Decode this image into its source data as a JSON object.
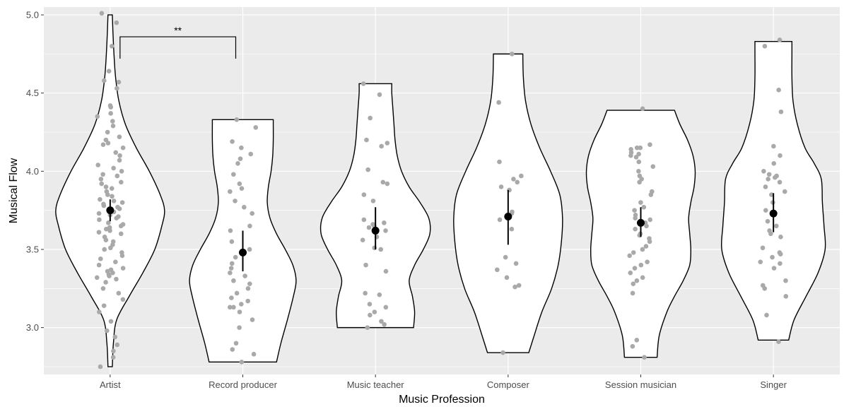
{
  "chart_data": {
    "type": "violin",
    "xlabel": "Music Profession",
    "ylabel": "Musical Flow",
    "ylim": [
      2.7,
      5.05
    ],
    "yticks": [
      3.0,
      3.5,
      4.0,
      4.5,
      5.0
    ],
    "ytick_labels": [
      "3.0",
      "3.5",
      "4.0",
      "4.5",
      "5.0"
    ],
    "categories": [
      "Artist",
      "Record producer",
      "Music teacher",
      "Composer",
      "Session musician",
      "Singer"
    ],
    "grid": true,
    "significance": [
      {
        "from": "Artist",
        "to": "Record producer",
        "label": "**"
      }
    ],
    "colors": {
      "panel": "#ebebeb",
      "grid": "#ffffff",
      "violin_fill": "#ffffff",
      "violin_line": "#000000",
      "point": "#a9a9a9",
      "summary": "#000000"
    },
    "groups": [
      {
        "name": "Artist",
        "mean": 3.75,
        "ci": [
          3.68,
          3.82
        ],
        "range": [
          2.75,
          5.0
        ],
        "density": [
          [
            2.75,
            0.04
          ],
          [
            2.9,
            0.06
          ],
          [
            3.05,
            0.12
          ],
          [
            3.2,
            0.35
          ],
          [
            3.35,
            0.6
          ],
          [
            3.5,
            0.82
          ],
          [
            3.65,
            0.95
          ],
          [
            3.75,
            1.0
          ],
          [
            3.85,
            0.92
          ],
          [
            4.0,
            0.72
          ],
          [
            4.15,
            0.48
          ],
          [
            4.3,
            0.28
          ],
          [
            4.45,
            0.16
          ],
          [
            4.6,
            0.1
          ],
          [
            4.75,
            0.07
          ],
          [
            4.9,
            0.05
          ],
          [
            5.0,
            0.04
          ]
        ],
        "points": [
          5.01,
          4.95,
          4.8,
          4.64,
          4.58,
          4.57,
          4.53,
          4.42,
          4.41,
          4.37,
          4.35,
          4.32,
          4.29,
          4.25,
          4.22,
          4.2,
          4.18,
          4.17,
          4.15,
          4.12,
          4.1,
          4.07,
          4.04,
          4.02,
          4.0,
          3.98,
          3.97,
          3.95,
          3.93,
          3.92,
          3.9,
          3.89,
          3.87,
          3.85,
          3.84,
          3.82,
          3.81,
          3.8,
          3.79,
          3.78,
          3.77,
          3.76,
          3.74,
          3.73,
          3.72,
          3.71,
          3.7,
          3.69,
          3.67,
          3.66,
          3.65,
          3.64,
          3.63,
          3.62,
          3.61,
          3.6,
          3.58,
          3.56,
          3.55,
          3.53,
          3.51,
          3.5,
          3.48,
          3.46,
          3.44,
          3.42,
          3.4,
          3.38,
          3.37,
          3.36,
          3.35,
          3.34,
          3.33,
          3.32,
          3.31,
          3.29,
          3.25,
          3.22,
          3.18,
          3.14,
          3.1,
          3.04,
          2.98,
          2.94,
          2.89,
          2.85,
          2.81,
          2.75
        ]
      },
      {
        "name": "Record producer",
        "mean": 3.48,
        "ci": [
          3.36,
          3.62
        ],
        "range": [
          2.78,
          4.33
        ],
        "density": [
          [
            2.78,
            0.62
          ],
          [
            2.9,
            0.7
          ],
          [
            3.05,
            0.82
          ],
          [
            3.2,
            0.93
          ],
          [
            3.3,
            0.98
          ],
          [
            3.4,
            0.92
          ],
          [
            3.5,
            0.78
          ],
          [
            3.6,
            0.62
          ],
          [
            3.7,
            0.5
          ],
          [
            3.8,
            0.45
          ],
          [
            3.9,
            0.47
          ],
          [
            4.0,
            0.52
          ],
          [
            4.1,
            0.55
          ],
          [
            4.2,
            0.56
          ],
          [
            4.3,
            0.56
          ],
          [
            4.33,
            0.56
          ]
        ],
        "points": [
          4.33,
          4.28,
          4.19,
          4.15,
          4.11,
          4.08,
          4.05,
          3.98,
          3.92,
          3.89,
          3.87,
          3.81,
          3.77,
          3.73,
          3.65,
          3.62,
          3.55,
          3.5,
          3.48,
          3.45,
          3.41,
          3.38,
          3.35,
          3.33,
          3.3,
          3.28,
          3.25,
          3.22,
          3.19,
          3.17,
          3.15,
          3.13,
          3.13,
          3.1,
          3.05,
          3.0,
          2.9,
          2.86,
          2.83,
          2.78
        ]
      },
      {
        "name": "Music teacher",
        "mean": 3.62,
        "ci": [
          3.5,
          3.77
        ],
        "range": [
          3.0,
          4.56
        ],
        "density": [
          [
            3.0,
            0.7
          ],
          [
            3.1,
            0.72
          ],
          [
            3.2,
            0.68
          ],
          [
            3.3,
            0.62
          ],
          [
            3.4,
            0.72
          ],
          [
            3.5,
            0.88
          ],
          [
            3.6,
            1.0
          ],
          [
            3.7,
            0.98
          ],
          [
            3.8,
            0.82
          ],
          [
            3.9,
            0.62
          ],
          [
            4.0,
            0.48
          ],
          [
            4.1,
            0.4
          ],
          [
            4.2,
            0.36
          ],
          [
            4.3,
            0.34
          ],
          [
            4.4,
            0.32
          ],
          [
            4.5,
            0.3
          ],
          [
            4.56,
            0.3
          ]
        ],
        "points": [
          4.56,
          4.49,
          4.34,
          4.2,
          4.18,
          4.16,
          4.01,
          3.93,
          3.92,
          3.85,
          3.81,
          3.69,
          3.67,
          3.66,
          3.65,
          3.64,
          3.62,
          3.58,
          3.56,
          3.51,
          3.5,
          3.4,
          3.36,
          3.22,
          3.21,
          3.15,
          3.13,
          3.1,
          3.08,
          3.04,
          3.02,
          3.0
        ]
      },
      {
        "name": "Composer",
        "mean": 3.71,
        "ci": [
          3.53,
          3.88
        ],
        "range": [
          2.84,
          4.75
        ],
        "density": [
          [
            2.84,
            0.38
          ],
          [
            2.95,
            0.48
          ],
          [
            3.1,
            0.62
          ],
          [
            3.25,
            0.8
          ],
          [
            3.4,
            0.92
          ],
          [
            3.55,
            0.98
          ],
          [
            3.7,
            1.0
          ],
          [
            3.85,
            0.95
          ],
          [
            4.0,
            0.78
          ],
          [
            4.15,
            0.58
          ],
          [
            4.3,
            0.42
          ],
          [
            4.45,
            0.32
          ],
          [
            4.6,
            0.28
          ],
          [
            4.75,
            0.27
          ]
        ],
        "points": [
          4.75,
          4.44,
          4.06,
          3.97,
          3.95,
          3.93,
          3.9,
          3.88,
          3.74,
          3.73,
          3.71,
          3.69,
          3.63,
          3.45,
          3.41,
          3.37,
          3.32,
          3.27,
          3.26,
          2.84
        ]
      },
      {
        "name": "Session musician",
        "mean": 3.67,
        "ci": [
          3.58,
          3.77
        ],
        "range": [
          2.81,
          4.39
        ],
        "density": [
          [
            2.81,
            0.3
          ],
          [
            2.95,
            0.34
          ],
          [
            3.1,
            0.48
          ],
          [
            3.2,
            0.62
          ],
          [
            3.3,
            0.78
          ],
          [
            3.4,
            0.9
          ],
          [
            3.5,
            0.92
          ],
          [
            3.6,
            0.9
          ],
          [
            3.7,
            0.88
          ],
          [
            3.8,
            0.92
          ],
          [
            3.9,
            0.98
          ],
          [
            4.0,
            1.0
          ],
          [
            4.1,
            0.96
          ],
          [
            4.2,
            0.86
          ],
          [
            4.3,
            0.72
          ],
          [
            4.39,
            0.62
          ]
        ],
        "points": [
          4.4,
          4.17,
          4.15,
          4.15,
          4.14,
          4.12,
          4.11,
          4.1,
          4.09,
          4.06,
          4.03,
          4.0,
          3.97,
          3.95,
          3.93,
          3.87,
          3.85,
          3.8,
          3.77,
          3.75,
          3.72,
          3.7,
          3.69,
          3.67,
          3.65,
          3.63,
          3.6,
          3.59,
          3.57,
          3.55,
          3.52,
          3.5,
          3.48,
          3.46,
          3.42,
          3.4,
          3.38,
          3.35,
          3.32,
          3.3,
          3.28,
          3.22,
          2.92,
          2.88,
          2.81
        ]
      },
      {
        "name": "Singer",
        "mean": 3.73,
        "ci": [
          3.61,
          3.86
        ],
        "range": [
          2.92,
          4.83
        ],
        "density": [
          [
            2.92,
            0.28
          ],
          [
            3.05,
            0.38
          ],
          [
            3.2,
            0.6
          ],
          [
            3.35,
            0.82
          ],
          [
            3.5,
            0.95
          ],
          [
            3.65,
            0.93
          ],
          [
            3.8,
            0.9
          ],
          [
            3.95,
            0.88
          ],
          [
            4.05,
            0.75
          ],
          [
            4.15,
            0.58
          ],
          [
            4.3,
            0.44
          ],
          [
            4.45,
            0.36
          ],
          [
            4.6,
            0.34
          ],
          [
            4.75,
            0.34
          ],
          [
            4.83,
            0.34
          ]
        ],
        "points": [
          4.84,
          4.8,
          4.52,
          4.38,
          4.16,
          4.1,
          4.05,
          4.0,
          3.98,
          3.97,
          3.96,
          3.95,
          3.93,
          3.9,
          3.87,
          3.85,
          3.8,
          3.75,
          3.68,
          3.65,
          3.62,
          3.6,
          3.58,
          3.51,
          3.48,
          3.47,
          3.45,
          3.42,
          3.41,
          3.38,
          3.3,
          3.27,
          3.25,
          3.2,
          3.08,
          2.91
        ]
      }
    ]
  }
}
